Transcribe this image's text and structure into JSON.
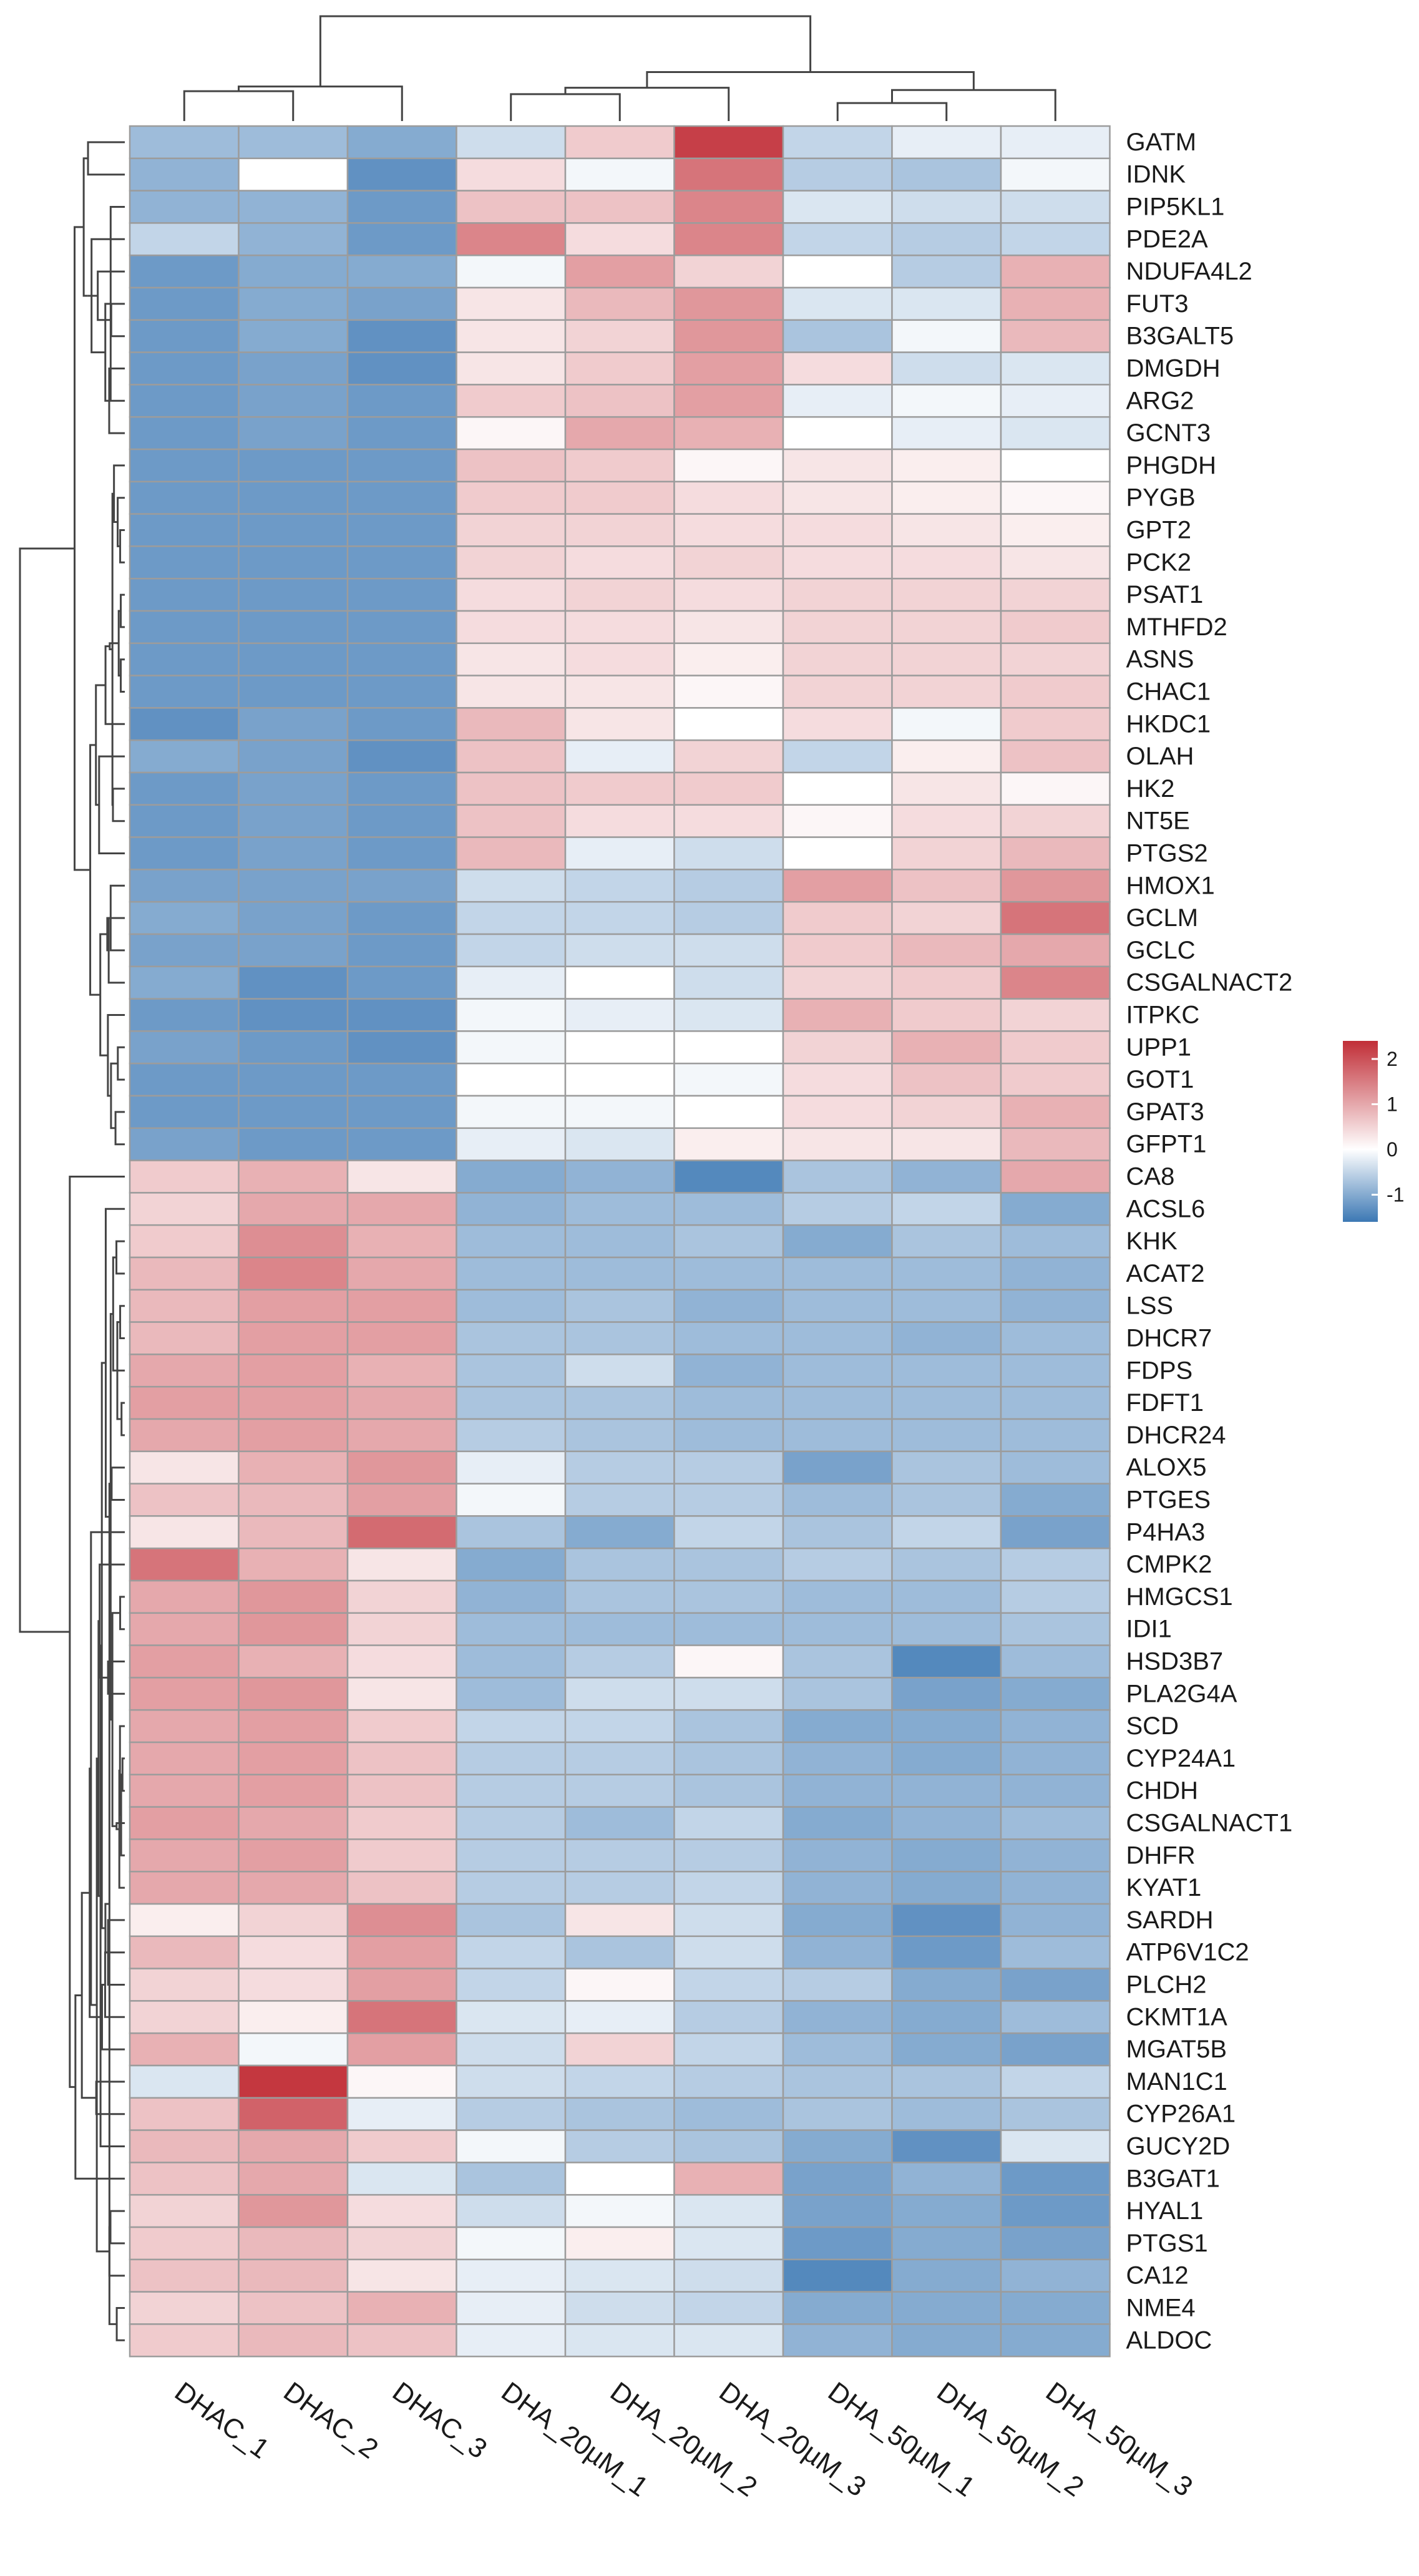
{
  "chart_data": {
    "type": "heatmap",
    "title": "",
    "columns": [
      "DHAC_1",
      "DHAC_2",
      "DHAC_3",
      "DHA_20µM_1",
      "DHA_20µM_2",
      "DHA_20µM_3",
      "DHA_50µM_1",
      "DHA_50µM_2",
      "DHA_50µM_3"
    ],
    "rows": [
      {
        "gene": "GATM",
        "values": [
          -0.8,
          -0.8,
          -1.0,
          -0.4,
          0.6,
          2.2,
          -0.5,
          -0.2,
          -0.2
        ]
      },
      {
        "gene": "IDNK",
        "values": [
          -0.9,
          0.0,
          -1.3,
          0.4,
          -0.1,
          1.6,
          -0.6,
          -0.7,
          -0.1
        ]
      },
      {
        "gene": "PIP5KL1",
        "values": [
          -0.9,
          -0.9,
          -1.2,
          0.7,
          0.7,
          1.4,
          -0.3,
          -0.4,
          -0.4
        ]
      },
      {
        "gene": "PDE2A",
        "values": [
          -0.5,
          -0.9,
          -1.2,
          1.4,
          0.4,
          1.4,
          -0.5,
          -0.6,
          -0.5
        ]
      },
      {
        "gene": "NDUFA4L2",
        "values": [
          -1.2,
          -1.0,
          -1.0,
          -0.1,
          1.1,
          0.5,
          0.0,
          -0.6,
          0.9
        ]
      },
      {
        "gene": "FUT3",
        "values": [
          -1.2,
          -1.0,
          -1.1,
          0.3,
          0.8,
          1.2,
          -0.3,
          -0.3,
          0.9
        ]
      },
      {
        "gene": "B3GALT5",
        "values": [
          -1.2,
          -1.0,
          -1.3,
          0.3,
          0.5,
          1.2,
          -0.7,
          -0.1,
          0.8
        ]
      },
      {
        "gene": "DMGDH",
        "values": [
          -1.2,
          -1.1,
          -1.3,
          0.3,
          0.6,
          1.1,
          0.4,
          -0.4,
          -0.3
        ]
      },
      {
        "gene": "ARG2",
        "values": [
          -1.2,
          -1.1,
          -1.2,
          0.6,
          0.7,
          1.1,
          -0.2,
          -0.1,
          -0.2
        ]
      },
      {
        "gene": "GCNT3",
        "values": [
          -1.2,
          -1.1,
          -1.2,
          0.1,
          1.0,
          0.9,
          0.0,
          -0.2,
          -0.3
        ]
      },
      {
        "gene": "PHGDH",
        "values": [
          -1.2,
          -1.2,
          -1.2,
          0.7,
          0.6,
          0.1,
          0.3,
          0.2,
          0.0
        ]
      },
      {
        "gene": "PYGB",
        "values": [
          -1.2,
          -1.2,
          -1.2,
          0.6,
          0.6,
          0.4,
          0.3,
          0.2,
          0.1
        ]
      },
      {
        "gene": "GPT2",
        "values": [
          -1.2,
          -1.2,
          -1.2,
          0.5,
          0.5,
          0.4,
          0.4,
          0.3,
          0.2
        ]
      },
      {
        "gene": "PCK2",
        "values": [
          -1.2,
          -1.2,
          -1.2,
          0.5,
          0.4,
          0.5,
          0.4,
          0.4,
          0.3
        ]
      },
      {
        "gene": "PSAT1",
        "values": [
          -1.2,
          -1.2,
          -1.2,
          0.4,
          0.5,
          0.4,
          0.5,
          0.5,
          0.5
        ]
      },
      {
        "gene": "MTHFD2",
        "values": [
          -1.2,
          -1.2,
          -1.2,
          0.4,
          0.4,
          0.3,
          0.5,
          0.5,
          0.6
        ]
      },
      {
        "gene": "ASNS",
        "values": [
          -1.2,
          -1.2,
          -1.2,
          0.3,
          0.4,
          0.2,
          0.5,
          0.5,
          0.5
        ]
      },
      {
        "gene": "CHAC1",
        "values": [
          -1.2,
          -1.2,
          -1.2,
          0.3,
          0.3,
          0.1,
          0.5,
          0.5,
          0.6
        ]
      },
      {
        "gene": "HKDC1",
        "values": [
          -1.3,
          -1.1,
          -1.2,
          0.8,
          0.3,
          0.0,
          0.4,
          -0.1,
          0.6
        ]
      },
      {
        "gene": "OLAH",
        "values": [
          -1.0,
          -1.1,
          -1.3,
          0.7,
          -0.2,
          0.5,
          -0.5,
          0.2,
          0.7
        ]
      },
      {
        "gene": "HK2",
        "values": [
          -1.2,
          -1.1,
          -1.2,
          0.7,
          0.6,
          0.6,
          0.0,
          0.3,
          0.1
        ]
      },
      {
        "gene": "NT5E",
        "values": [
          -1.2,
          -1.1,
          -1.2,
          0.7,
          0.4,
          0.4,
          0.1,
          0.4,
          0.5
        ]
      },
      {
        "gene": "PTGS2",
        "values": [
          -1.2,
          -1.1,
          -1.2,
          0.8,
          -0.2,
          -0.4,
          0.0,
          0.5,
          0.8
        ]
      },
      {
        "gene": "HMOX1",
        "values": [
          -1.1,
          -1.1,
          -1.1,
          -0.4,
          -0.5,
          -0.6,
          1.1,
          0.7,
          1.2
        ]
      },
      {
        "gene": "GCLM",
        "values": [
          -1.0,
          -1.1,
          -1.2,
          -0.5,
          -0.5,
          -0.6,
          0.6,
          0.5,
          1.6
        ]
      },
      {
        "gene": "GCLC",
        "values": [
          -1.1,
          -1.1,
          -1.2,
          -0.5,
          -0.4,
          -0.4,
          0.6,
          0.8,
          1.0
        ]
      },
      {
        "gene": "CSGALNACT2",
        "values": [
          -1.0,
          -1.3,
          -1.2,
          -0.2,
          0.0,
          -0.4,
          0.5,
          0.6,
          1.4
        ]
      },
      {
        "gene": "ITPKC",
        "values": [
          -1.2,
          -1.3,
          -1.3,
          -0.1,
          -0.2,
          -0.3,
          0.9,
          0.6,
          0.5
        ]
      },
      {
        "gene": "UPP1",
        "values": [
          -1.1,
          -1.2,
          -1.3,
          -0.1,
          0.0,
          0.0,
          0.5,
          0.9,
          0.6
        ]
      },
      {
        "gene": "GOT1",
        "values": [
          -1.2,
          -1.2,
          -1.2,
          0.0,
          0.0,
          -0.1,
          0.4,
          0.7,
          0.6
        ]
      },
      {
        "gene": "GPAT3",
        "values": [
          -1.2,
          -1.2,
          -1.2,
          -0.1,
          -0.1,
          0.0,
          0.4,
          0.5,
          0.9
        ]
      },
      {
        "gene": "GFPT1",
        "values": [
          -1.1,
          -1.2,
          -1.2,
          -0.2,
          -0.3,
          0.2,
          0.3,
          0.3,
          0.8
        ]
      },
      {
        "gene": "CA8",
        "values": [
          0.6,
          0.9,
          0.3,
          -1.0,
          -0.9,
          -1.4,
          -0.7,
          -0.9,
          1.0
        ]
      },
      {
        "gene": "ACSL6",
        "values": [
          0.5,
          1.0,
          1.0,
          -0.9,
          -0.8,
          -0.8,
          -0.6,
          -0.5,
          -1.0
        ]
      },
      {
        "gene": "KHK",
        "values": [
          0.6,
          1.3,
          0.9,
          -0.8,
          -0.8,
          -0.7,
          -1.0,
          -0.7,
          -0.8
        ]
      },
      {
        "gene": "ACAT2",
        "values": [
          0.8,
          1.4,
          1.0,
          -0.8,
          -0.8,
          -0.8,
          -0.8,
          -0.8,
          -0.9
        ]
      },
      {
        "gene": "LSS",
        "values": [
          0.8,
          1.1,
          1.1,
          -0.8,
          -0.7,
          -0.9,
          -0.8,
          -0.8,
          -0.9
        ]
      },
      {
        "gene": "DHCR7",
        "values": [
          0.8,
          1.1,
          1.1,
          -0.7,
          -0.7,
          -0.8,
          -0.8,
          -0.9,
          -0.8
        ]
      },
      {
        "gene": "FDPS",
        "values": [
          1.0,
          1.1,
          0.9,
          -0.7,
          -0.4,
          -0.9,
          -0.8,
          -0.8,
          -0.8
        ]
      },
      {
        "gene": "FDFT1",
        "values": [
          1.1,
          1.1,
          1.0,
          -0.7,
          -0.7,
          -0.8,
          -0.8,
          -0.8,
          -0.8
        ]
      },
      {
        "gene": "DHCR24",
        "values": [
          1.0,
          1.1,
          1.0,
          -0.6,
          -0.7,
          -0.8,
          -0.8,
          -0.8,
          -0.8
        ]
      },
      {
        "gene": "ALOX5",
        "values": [
          0.3,
          0.9,
          1.2,
          -0.2,
          -0.6,
          -0.6,
          -1.1,
          -0.7,
          -0.8
        ]
      },
      {
        "gene": "PTGES",
        "values": [
          0.7,
          0.8,
          1.1,
          -0.1,
          -0.6,
          -0.6,
          -0.8,
          -0.7,
          -1.0
        ]
      },
      {
        "gene": "P4HA3",
        "values": [
          0.3,
          0.8,
          1.7,
          -0.7,
          -1.0,
          -0.5,
          -0.7,
          -0.5,
          -1.1
        ]
      },
      {
        "gene": "CMPK2",
        "values": [
          1.6,
          0.9,
          0.3,
          -1.0,
          -0.7,
          -0.7,
          -0.6,
          -0.7,
          -0.6
        ]
      },
      {
        "gene": "HMGCS1",
        "values": [
          1.0,
          1.2,
          0.5,
          -0.9,
          -0.7,
          -0.7,
          -0.8,
          -0.8,
          -0.6
        ]
      },
      {
        "gene": "IDI1",
        "values": [
          1.0,
          1.2,
          0.5,
          -0.8,
          -0.8,
          -0.8,
          -0.8,
          -0.8,
          -0.7
        ]
      },
      {
        "gene": "HSD3B7",
        "values": [
          1.1,
          0.9,
          0.4,
          -0.8,
          -0.6,
          0.1,
          -0.7,
          -1.4,
          -0.8
        ]
      },
      {
        "gene": "PLA2G4A",
        "values": [
          1.1,
          1.2,
          0.3,
          -0.8,
          -0.4,
          -0.4,
          -0.7,
          -1.1,
          -1.0
        ]
      },
      {
        "gene": "SCD",
        "values": [
          1.0,
          1.1,
          0.6,
          -0.5,
          -0.5,
          -0.7,
          -1.0,
          -1.0,
          -0.9
        ]
      },
      {
        "gene": "CYP24A1",
        "values": [
          1.0,
          1.1,
          0.7,
          -0.6,
          -0.6,
          -0.7,
          -0.9,
          -1.0,
          -0.9
        ]
      },
      {
        "gene": "CHDH",
        "values": [
          1.0,
          1.1,
          0.7,
          -0.6,
          -0.6,
          -0.7,
          -0.9,
          -0.9,
          -0.9
        ]
      },
      {
        "gene": "CSGALNACT1",
        "values": [
          1.1,
          1.0,
          0.6,
          -0.6,
          -0.8,
          -0.5,
          -1.0,
          -0.9,
          -0.8
        ]
      },
      {
        "gene": "DHFR",
        "values": [
          1.0,
          1.1,
          0.6,
          -0.6,
          -0.6,
          -0.6,
          -0.9,
          -1.0,
          -0.9
        ]
      },
      {
        "gene": "KYAT1",
        "values": [
          1.0,
          1.0,
          0.7,
          -0.6,
          -0.6,
          -0.5,
          -0.9,
          -1.0,
          -0.9
        ]
      },
      {
        "gene": "SARDH",
        "values": [
          0.2,
          0.5,
          1.3,
          -0.7,
          0.3,
          -0.4,
          -1.0,
          -1.3,
          -0.9
        ]
      },
      {
        "gene": "ATP6V1C2",
        "values": [
          0.8,
          0.4,
          1.1,
          -0.5,
          -0.7,
          -0.4,
          -0.9,
          -1.2,
          -0.8
        ]
      },
      {
        "gene": "PLCH2",
        "values": [
          0.5,
          0.4,
          1.1,
          -0.5,
          0.1,
          -0.5,
          -0.6,
          -1.0,
          -1.1
        ]
      },
      {
        "gene": "CKMT1A",
        "values": [
          0.5,
          0.2,
          1.6,
          -0.3,
          -0.2,
          -0.6,
          -0.9,
          -1.0,
          -0.8
        ]
      },
      {
        "gene": "MGAT5B",
        "values": [
          0.9,
          -0.1,
          1.1,
          -0.4,
          0.5,
          -0.5,
          -0.8,
          -1.0,
          -1.1
        ]
      },
      {
        "gene": "MAN1C1",
        "values": [
          -0.3,
          2.3,
          0.1,
          -0.4,
          -0.5,
          -0.6,
          -0.7,
          -0.7,
          -0.5
        ]
      },
      {
        "gene": "CYP26A1",
        "values": [
          0.7,
          1.8,
          -0.2,
          -0.6,
          -0.7,
          -0.8,
          -0.7,
          -0.8,
          -0.7
        ]
      },
      {
        "gene": "GUCY2D",
        "values": [
          0.8,
          1.0,
          0.6,
          -0.1,
          -0.6,
          -0.7,
          -1.0,
          -1.3,
          -0.3
        ]
      },
      {
        "gene": "B3GAT1",
        "values": [
          0.7,
          1.0,
          -0.3,
          -0.7,
          0.0,
          0.9,
          -1.1,
          -0.9,
          -1.2
        ]
      },
      {
        "gene": "HYAL1",
        "values": [
          0.5,
          1.2,
          0.4,
          -0.4,
          -0.1,
          -0.3,
          -1.1,
          -1.0,
          -1.2
        ]
      },
      {
        "gene": "PTGS1",
        "values": [
          0.6,
          0.8,
          0.5,
          -0.1,
          0.2,
          -0.3,
          -1.2,
          -1.0,
          -1.1
        ]
      },
      {
        "gene": "CA12",
        "values": [
          0.7,
          0.8,
          0.3,
          -0.2,
          -0.3,
          -0.4,
          -1.4,
          -1.0,
          -0.9
        ]
      },
      {
        "gene": "NME4",
        "values": [
          0.5,
          0.7,
          0.9,
          -0.2,
          -0.4,
          -0.5,
          -1.0,
          -1.0,
          -1.0
        ]
      },
      {
        "gene": "ALDOC",
        "values": [
          0.6,
          0.8,
          0.7,
          -0.2,
          -0.3,
          -0.3,
          -0.9,
          -1.0,
          -1.0
        ]
      }
    ],
    "color_scale": {
      "low_color": "#3c78b4",
      "mid_color": "#ffffff",
      "high_color": "#c12e37",
      "domain": [
        -1.6,
        2.4
      ],
      "legend_ticks": [
        2,
        1,
        0,
        -1
      ]
    },
    "legend_placement": "right-middle",
    "column_dendrogram": true,
    "row_dendrogram": true
  }
}
